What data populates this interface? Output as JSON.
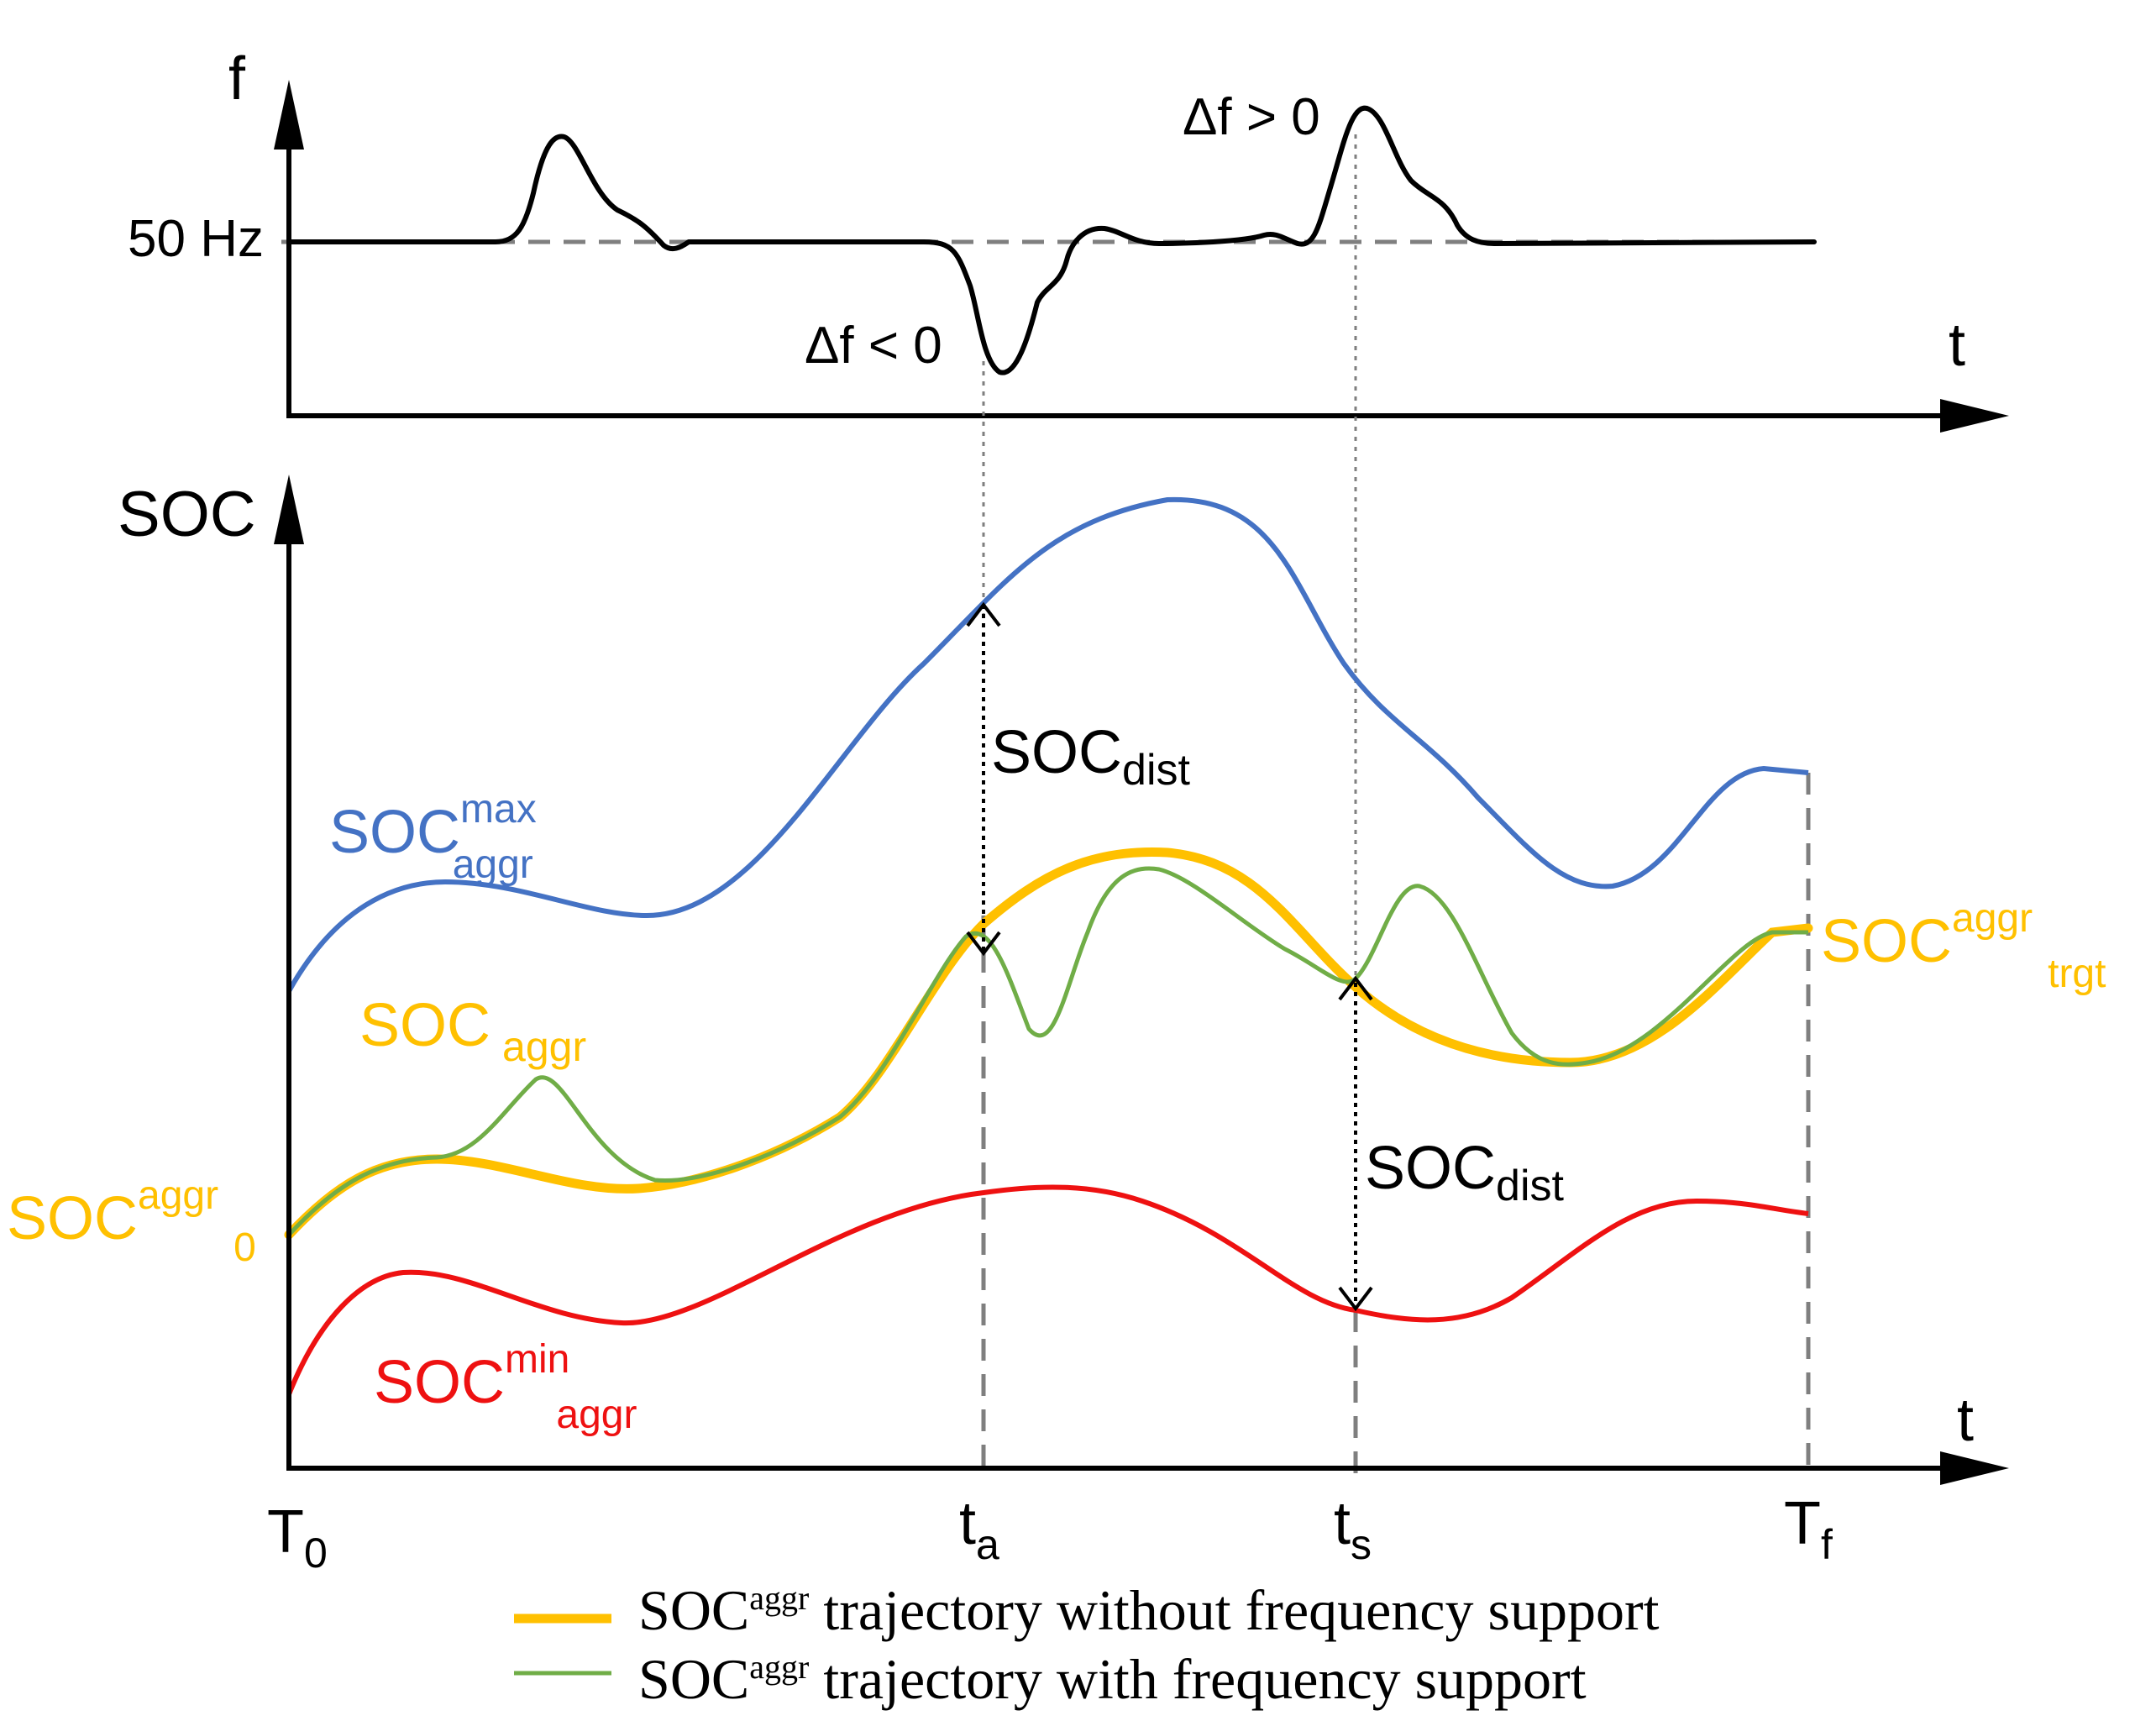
{
  "colors": {
    "ink": "#000000",
    "max": "#4472C4",
    "aggr": "#FFC000",
    "min": "#EE1111",
    "green": "#70AD47",
    "guide": "#7f7f7f"
  },
  "top_panel": {
    "y_axis_label": "f",
    "x_axis_label": "t",
    "nominal_label": "50 Hz",
    "dip_label": "Δf < 0",
    "peak_label": "Δf > 0"
  },
  "bottom_panel": {
    "y_axis_label": "SOC",
    "x_axis_label": "t",
    "ticks": {
      "t0_main": "T",
      "t0_sub": "0",
      "ta_main": "t",
      "ta_sub": "a",
      "ts_main": "t",
      "ts_sub": "s",
      "tf_main": "T",
      "tf_sub": "f"
    },
    "soc_dist_a": {
      "main": "SOC",
      "sub": "dist"
    },
    "soc_dist_s": {
      "main": "SOC",
      "sub": "dist"
    },
    "curve_labels": {
      "max": {
        "main": "SOC",
        "sup": "max",
        "sub": "aggr"
      },
      "aggr": {
        "main": "SOC",
        "sub": "aggr"
      },
      "initial": {
        "main": "SOC",
        "sup": "aggr",
        "sub": "0"
      },
      "target": {
        "main": "SOC",
        "sup": "aggr",
        "sub": "trgt"
      },
      "min": {
        "main": "SOC",
        "sup": "min",
        "sub": "aggr"
      }
    }
  },
  "legend": [
    {
      "main": "SOC",
      "sup": "aggr",
      "rest": " trajectory without frequency support"
    },
    {
      "main": "SOC",
      "sup": "aggr",
      "rest": " trajectory with frequency support"
    }
  ]
}
